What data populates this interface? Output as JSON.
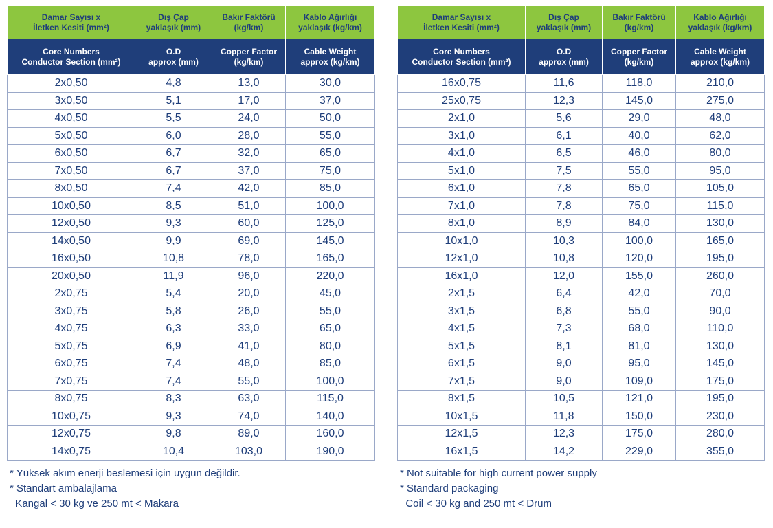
{
  "header": {
    "tr": [
      "Damar Sayısı x\nİletken Kesiti (mm²)",
      "Dış Çap\nyaklaşık (mm)",
      "Bakır Faktörü\n(kg/km)",
      "Kablo Ağırlığı\nyaklaşık (kg/km)"
    ],
    "en": [
      "Core Numbers\nConductor Section (mm²)",
      "O.D\napprox (mm)",
      "Copper Factor\n(kg/km)",
      "Cable Weight\napprox (kg/km)"
    ]
  },
  "left_rows": [
    [
      "2x0,50",
      "4,8",
      "13,0",
      "30,0"
    ],
    [
      "3x0,50",
      "5,1",
      "17,0",
      "37,0"
    ],
    [
      "4x0,50",
      "5,5",
      "24,0",
      "50,0"
    ],
    [
      "5x0,50",
      "6,0",
      "28,0",
      "55,0"
    ],
    [
      "6x0,50",
      "6,7",
      "32,0",
      "65,0"
    ],
    [
      "7x0,50",
      "6,7",
      "37,0",
      "75,0"
    ],
    [
      "8x0,50",
      "7,4",
      "42,0",
      "85,0"
    ],
    [
      "10x0,50",
      "8,5",
      "51,0",
      "100,0"
    ],
    [
      "12x0,50",
      "9,3",
      "60,0",
      "125,0"
    ],
    [
      "14x0,50",
      "9,9",
      "69,0",
      "145,0"
    ],
    [
      "16x0,50",
      "10,8",
      "78,0",
      "165,0"
    ],
    [
      "20x0,50",
      "11,9",
      "96,0",
      "220,0"
    ],
    [
      "2x0,75",
      "5,4",
      "20,0",
      "45,0"
    ],
    [
      "3x0,75",
      "5,8",
      "26,0",
      "55,0"
    ],
    [
      "4x0,75",
      "6,3",
      "33,0",
      "65,0"
    ],
    [
      "5x0,75",
      "6,9",
      "41,0",
      "80,0"
    ],
    [
      "6x0,75",
      "7,4",
      "48,0",
      "85,0"
    ],
    [
      "7x0,75",
      "7,4",
      "55,0",
      "100,0"
    ],
    [
      "8x0,75",
      "8,3",
      "63,0",
      "115,0"
    ],
    [
      "10x0,75",
      "9,3",
      "74,0",
      "140,0"
    ],
    [
      "12x0,75",
      "9,8",
      "89,0",
      "160,0"
    ],
    [
      "14x0,75",
      "10,4",
      "103,0",
      "190,0"
    ]
  ],
  "right_rows": [
    [
      "16x0,75",
      "11,6",
      "118,0",
      "210,0"
    ],
    [
      "25x0,75",
      "12,3",
      "145,0",
      "275,0"
    ],
    [
      "2x1,0",
      "5,6",
      "29,0",
      "48,0"
    ],
    [
      "3x1,0",
      "6,1",
      "40,0",
      "62,0"
    ],
    [
      "4x1,0",
      "6,5",
      "46,0",
      "80,0"
    ],
    [
      "5x1,0",
      "7,5",
      "55,0",
      "95,0"
    ],
    [
      "6x1,0",
      "7,8",
      "65,0",
      "105,0"
    ],
    [
      "7x1,0",
      "7,8",
      "75,0",
      "115,0"
    ],
    [
      "8x1,0",
      "8,9",
      "84,0",
      "130,0"
    ],
    [
      "10x1,0",
      "10,3",
      "100,0",
      "165,0"
    ],
    [
      "12x1,0",
      "10,8",
      "120,0",
      "195,0"
    ],
    [
      "16x1,0",
      "12,0",
      "155,0",
      "260,0"
    ],
    [
      "2x1,5",
      "6,4",
      "42,0",
      "70,0"
    ],
    [
      "3x1,5",
      "6,8",
      "55,0",
      "90,0"
    ],
    [
      "4x1,5",
      "7,3",
      "68,0",
      "110,0"
    ],
    [
      "5x1,5",
      "8,1",
      "81,0",
      "130,0"
    ],
    [
      "6x1,5",
      "9,0",
      "95,0",
      "145,0"
    ],
    [
      "7x1,5",
      "9,0",
      "109,0",
      "175,0"
    ],
    [
      "8x1,5",
      "10,5",
      "121,0",
      "195,0"
    ],
    [
      "10x1,5",
      "11,8",
      "150,0",
      "230,0"
    ],
    [
      "12x1,5",
      "12,3",
      "175,0",
      "280,0"
    ],
    [
      "16x1,5",
      "14,2",
      "229,0",
      "355,0"
    ]
  ],
  "notes_tr": [
    "* Yüksek akım enerji beslemesi için uygun değildir.",
    "* Standart ambalajlama",
    "  Kangal < 30 kg ve 250 mt < Makara"
  ],
  "notes_en": [
    "* Not suitable for high current power supply",
    "* Standard packaging",
    "  Coil < 30 kg and 250 mt < Drum"
  ],
  "colors": {
    "header_green": "#8dc63f",
    "header_navy": "#1f3e7a",
    "text_navy": "#1f3e7a",
    "border": "#9aa8c8"
  }
}
